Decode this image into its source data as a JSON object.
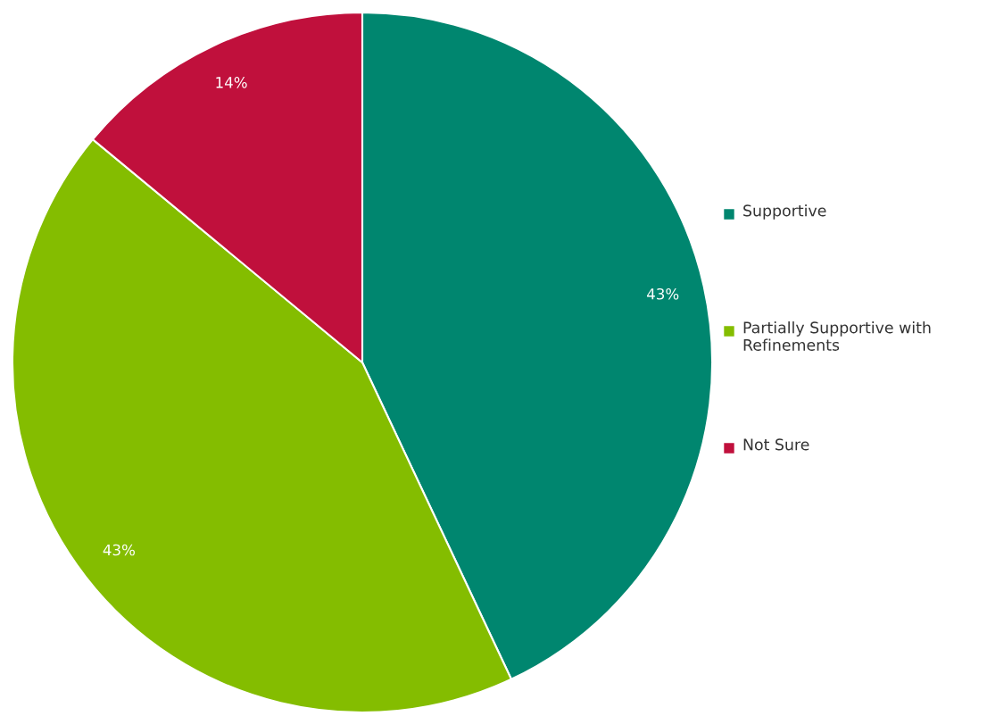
{
  "chart_data": {
    "type": "pie",
    "categories": [
      "Supportive",
      "Partially Supportive with Refinements",
      "Not Sure"
    ],
    "values": [
      43,
      43,
      14
    ],
    "value_labels": [
      "43%",
      "43%",
      "14%"
    ],
    "colors": [
      "#00866f",
      "#84bd00",
      "#c0103c"
    ],
    "legend": "right"
  }
}
